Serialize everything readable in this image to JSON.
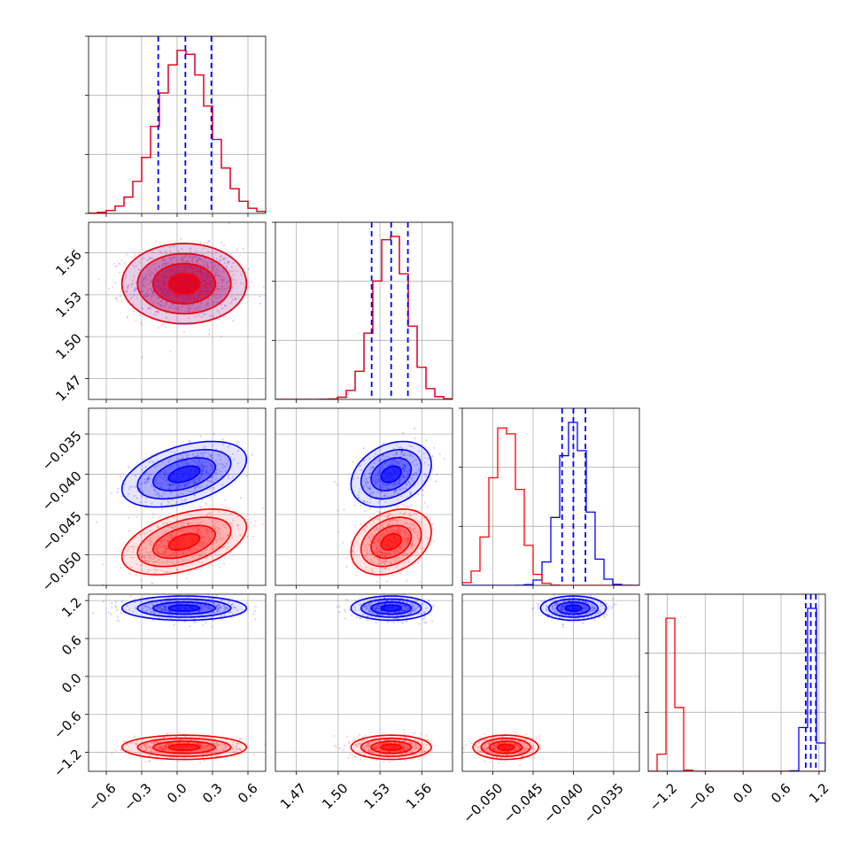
{
  "chart_data": {
    "type": "corner",
    "grid": true,
    "colors": {
      "blue": "#0000ff",
      "red": "#ff0000",
      "grid": "#b0b0b0"
    },
    "series": [
      {
        "color": "#0000ff",
        "means": [
          0.06,
          1.538,
          -0.04,
          1.08
        ],
        "sds": [
          0.22,
          0.012,
          0.0017,
          0.08
        ],
        "corr": {
          "0_2": 0.45,
          "1_2": 0.3
        }
      },
      {
        "color": "#ff0000",
        "means": [
          0.06,
          1.538,
          -0.0484,
          -1.12
        ],
        "sds": [
          0.22,
          0.012,
          0.0017,
          0.08
        ],
        "corr": {
          "0_2": 0.45,
          "1_2": 0.3
        }
      }
    ],
    "quantile_lines": {
      "color": "#0000ff",
      "dims": [
        [
          -0.16,
          0.07,
          0.29
        ],
        [
          1.524,
          1.538,
          1.55
        ],
        [
          -0.0414,
          -0.04,
          -0.0385
        ],
        [
          0.99,
          1.07,
          1.15
        ]
      ]
    },
    "axes": [
      {
        "range": [
          -0.75,
          0.75
        ],
        "ticks": [
          -0.6,
          -0.3,
          0.0,
          0.3,
          0.6
        ],
        "tick_labels": [
          "−0.6",
          "−0.3",
          "0.0",
          "0.3",
          "0.6"
        ]
      },
      {
        "range": [
          1.455,
          1.582
        ],
        "ticks": [
          1.47,
          1.5,
          1.53,
          1.56
        ],
        "tick_labels": [
          "1.47",
          "1.50",
          "1.53",
          "1.56"
        ]
      },
      {
        "range": [
          -0.0538,
          -0.0318
        ],
        "ticks": [
          -0.05,
          -0.045,
          -0.04,
          -0.035
        ],
        "tick_labels": [
          "−0.050",
          "−0.045",
          "−0.040",
          "−0.035"
        ]
      },
      {
        "range": [
          -1.5,
          1.3
        ],
        "ticks": [
          -1.2,
          -0.6,
          0.0,
          0.6,
          1.2
        ],
        "tick_labels": [
          "−1.2",
          "−0.6",
          "0.0",
          "0.6",
          "1.2"
        ]
      }
    ]
  }
}
